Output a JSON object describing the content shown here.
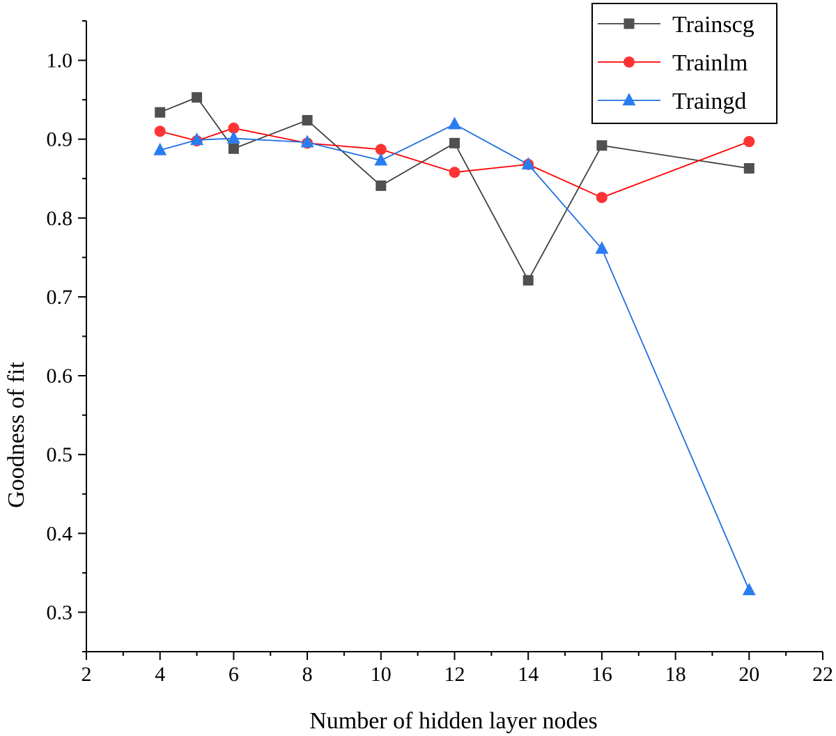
{
  "chart_data": {
    "type": "line",
    "xlabel": "Number of hidden layer nodes",
    "ylabel": "Goodness of fit",
    "xlim": [
      2,
      22
    ],
    "ylim": [
      0.25,
      1.05
    ],
    "x_ticks": [
      "2",
      "4",
      "6",
      "8",
      "10",
      "12",
      "14",
      "16",
      "18",
      "20",
      "22"
    ],
    "y_ticks": [
      "0.3",
      "0.4",
      "0.5",
      "0.6",
      "0.7",
      "0.8",
      "0.9",
      "1.0"
    ],
    "x_tick_values": [
      2,
      4,
      6,
      8,
      10,
      12,
      14,
      16,
      18,
      20,
      22
    ],
    "y_tick_values": [
      0.3,
      0.4,
      0.5,
      0.6,
      0.7,
      0.8,
      0.9,
      1.0
    ],
    "grid": false,
    "legend_position": "top-right",
    "series": [
      {
        "name": "Trainscg",
        "marker": "square",
        "color": "#404040",
        "marker_color": "#505050",
        "x": [
          4,
          5,
          6,
          8,
          10,
          12,
          14,
          16,
          20
        ],
        "y": [
          0.934,
          0.953,
          0.888,
          0.924,
          0.841,
          0.895,
          0.721,
          0.892,
          0.863
        ]
      },
      {
        "name": "Trainlm",
        "marker": "circle",
        "color": "#ff0000",
        "marker_color": "#ff3333",
        "x": [
          4,
          5,
          6,
          8,
          10,
          12,
          14,
          16,
          20
        ],
        "y": [
          0.91,
          0.898,
          0.914,
          0.895,
          0.887,
          0.858,
          0.868,
          0.826,
          0.897
        ]
      },
      {
        "name": "Traingd",
        "marker": "triangle",
        "color": "#1e6fe0",
        "marker_color": "#2a7df0",
        "x": [
          4,
          5,
          6,
          8,
          10,
          12,
          14,
          16,
          20
        ],
        "y": [
          0.886,
          0.899,
          0.901,
          0.896,
          0.873,
          0.919,
          0.868,
          0.761,
          0.328
        ]
      }
    ]
  }
}
